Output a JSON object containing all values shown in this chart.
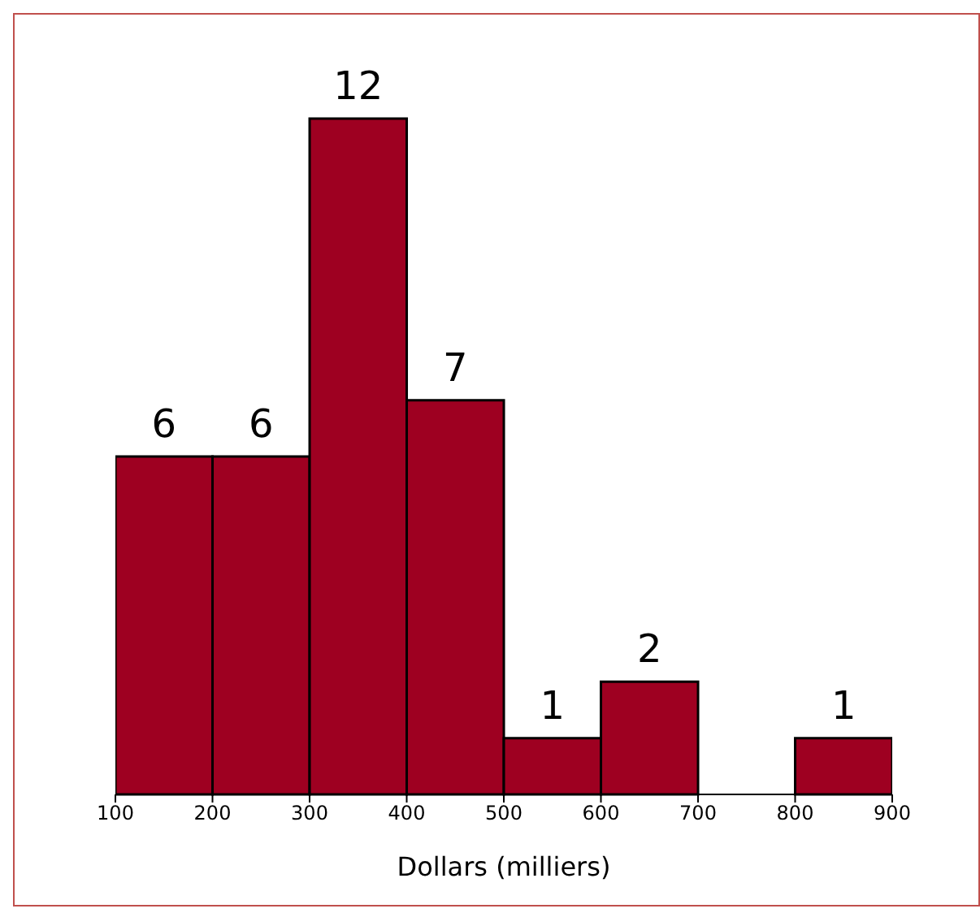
{
  "chart_data": {
    "type": "bar",
    "xlabel": "Dollars (milliers)",
    "x": [
      150,
      250,
      350,
      450,
      550,
      650,
      750,
      850
    ],
    "values": [
      6,
      6,
      12,
      7,
      1,
      2,
      0,
      1
    ],
    "value_labels": [
      "6",
      "6",
      "12",
      "7",
      "1",
      "2",
      null,
      "1"
    ],
    "color": "#9e0021",
    "xlim": [
      100,
      900
    ],
    "xticks": [
      100,
      200,
      300,
      400,
      500,
      600,
      700,
      800,
      900
    ],
    "tick_labels": "x",
    "grid": false,
    "legend": false
  }
}
